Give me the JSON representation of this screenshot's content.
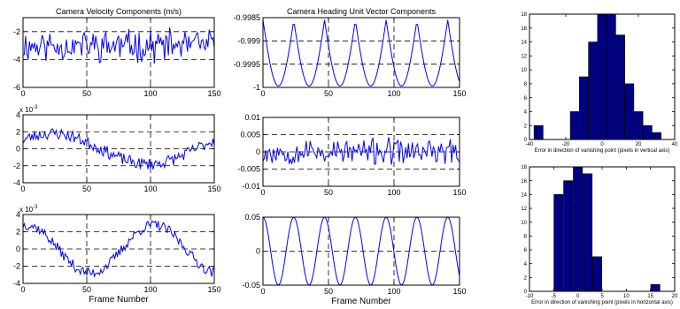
{
  "colors": {
    "series": "#0000ff",
    "bar_fill": "#000080",
    "bar_edge": "#000000",
    "axes": "#000000",
    "background": "#ffffff"
  },
  "chart_data": [
    {
      "id": "vel1",
      "type": "line",
      "title": "Camera Velocity Components (m/s)",
      "xlabel": "",
      "ylabel": "",
      "xlim": [
        0,
        150
      ],
      "ylim": [
        -6,
        -1
      ],
      "xticks": [
        0,
        50,
        100,
        150
      ],
      "yticks": [
        -6,
        -4,
        -2
      ],
      "exponent": "",
      "grid": "dashed",
      "series_kind": "noise",
      "series": [
        {
          "base": -3,
          "amplitude": 0.9,
          "period": 0,
          "noise": 0.9,
          "seed": 11
        }
      ]
    },
    {
      "id": "vel2",
      "type": "line",
      "title": "",
      "xlabel": "",
      "ylabel": "",
      "xlim": [
        0,
        150
      ],
      "ylim": [
        -4,
        4
      ],
      "xticks": [
        0,
        50,
        100,
        150
      ],
      "yticks": [
        -4,
        -2,
        0,
        2,
        4
      ],
      "exponent": "-3",
      "grid": "dashed",
      "series_kind": "wave",
      "series": [
        {
          "base": 0,
          "amplitude": 1.8,
          "period": 150,
          "phase": 0.6,
          "noise": 0.7,
          "seed": 23
        }
      ]
    },
    {
      "id": "vel3",
      "type": "line",
      "title": "",
      "xlabel": "Frame Number",
      "ylabel": "",
      "xlim": [
        0,
        150
      ],
      "ylim": [
        -4,
        4
      ],
      "xticks": [
        0,
        50,
        100,
        150
      ],
      "yticks": [
        -4,
        -2,
        0,
        2,
        4
      ],
      "exponent": "-3",
      "grid": "dashed",
      "series_kind": "wave",
      "series": [
        {
          "base": 0,
          "amplitude": 2.8,
          "period": 100,
          "phase": 1.4,
          "noise": 0.6,
          "seed": 37
        }
      ]
    },
    {
      "id": "head1",
      "type": "line",
      "title": "Camera Heading Unit Vector Components",
      "xlabel": "",
      "ylabel": "",
      "xlim": [
        0,
        150
      ],
      "ylim": [
        -1,
        -0.9985
      ],
      "xticks": [
        0,
        50,
        100,
        150
      ],
      "yticks": [
        -1,
        -0.9995,
        -0.999,
        -0.9985
      ],
      "exponent": "",
      "grid": "dashed",
      "series_kind": "abswave",
      "series": [
        {
          "base": -0.99855,
          "amplitude": 0.00142,
          "period": 23.5,
          "phase": 0,
          "noise": 0,
          "seed": 1
        }
      ]
    },
    {
      "id": "head2",
      "type": "line",
      "title": "",
      "xlabel": "",
      "ylabel": "",
      "xlim": [
        0,
        150
      ],
      "ylim": [
        -0.01,
        0.01
      ],
      "xticks": [
        0,
        50,
        100,
        150
      ],
      "yticks": [
        -0.01,
        -0.005,
        0,
        0.005,
        0.01
      ],
      "exponent": "",
      "grid": "dashed",
      "series_kind": "noise",
      "series": [
        {
          "base": 0,
          "amplitude": 0.003,
          "period": 0,
          "noise": 0.003,
          "seed": 53
        }
      ]
    },
    {
      "id": "head3",
      "type": "line",
      "title": "",
      "xlabel": "Frame Number",
      "ylabel": "",
      "xlim": [
        0,
        150
      ],
      "ylim": [
        -0.05,
        0.05
      ],
      "xticks": [
        0,
        50,
        100,
        150
      ],
      "yticks": [
        -0.05,
        0,
        0.05
      ],
      "exponent": "",
      "grid": "dashed",
      "series_kind": "wave",
      "series": [
        {
          "base": 0,
          "amplitude": 0.05,
          "period": 23.5,
          "phase": 1.5708,
          "noise": 0,
          "seed": 1
        }
      ]
    },
    {
      "id": "hist1",
      "type": "bar",
      "title": "",
      "xlabel": "Error in direction of vanishing point (pixels in vertical axis)",
      "ylabel": "",
      "xlim": [
        -40,
        40
      ],
      "ylim": [
        0,
        18
      ],
      "xticks": [
        -40,
        -20,
        0,
        20,
        40
      ],
      "yticks": [
        0,
        2,
        4,
        6,
        8,
        10,
        12,
        14,
        16,
        18
      ],
      "exponent": "",
      "grid": "none",
      "bin_width": 5,
      "bins": [
        -35,
        -15,
        -10,
        -5,
        0,
        5,
        10,
        15,
        20,
        25,
        30
      ],
      "values": [
        2,
        4,
        9,
        14,
        18,
        18,
        15,
        8,
        4,
        2,
        1
      ]
    },
    {
      "id": "hist2",
      "type": "bar",
      "title": "",
      "xlabel": "Error in direction of vanishing point (pixels in horizontal axis)",
      "ylabel": "",
      "xlim": [
        -10,
        20
      ],
      "ylim": [
        0,
        18
      ],
      "xticks": [
        -10,
        -5,
        0,
        5,
        10,
        15,
        20
      ],
      "yticks": [
        0,
        2,
        4,
        6,
        8,
        10,
        12,
        14,
        16,
        18
      ],
      "exponent": "",
      "grid": "none",
      "bin_width": 1.9,
      "bins": [
        -4,
        -2,
        0,
        2,
        4,
        16
      ],
      "values": [
        14,
        16,
        18,
        17,
        5,
        1
      ]
    }
  ]
}
